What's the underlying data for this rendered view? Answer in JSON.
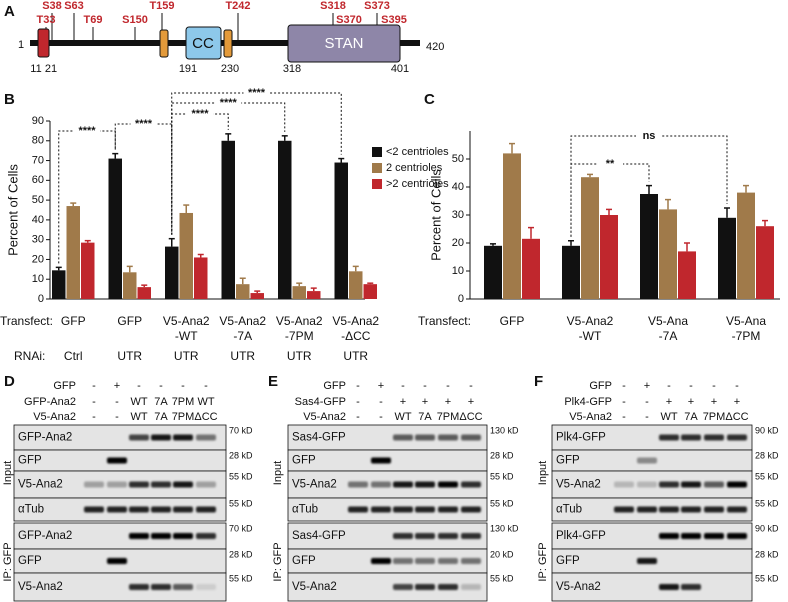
{
  "panel_a": {
    "letter": "A",
    "start": "1",
    "end": "420",
    "sites": [
      "S38",
      "T33",
      "S63",
      "T69",
      "S150",
      "T159",
      "T242",
      "S318",
      "S370",
      "S373",
      "S395"
    ],
    "domains": [
      "CC",
      "STAN"
    ],
    "boundaries": [
      "11",
      "21",
      "191",
      "230",
      "318",
      "401"
    ]
  },
  "chart_data": [
    {
      "type": "bar",
      "letter": "B",
      "ylabel": "Percent of Cells",
      "ylim": [
        0,
        90
      ],
      "yticks": [
        0,
        10,
        20,
        30,
        40,
        50,
        60,
        70,
        80,
        90
      ],
      "transfect_label": "Transfect:",
      "rnai_label": "RNAi:",
      "categories": [
        [
          "GFP"
        ],
        [
          "GFP"
        ],
        [
          "V5-Ana2",
          "-WT"
        ],
        [
          "V5-Ana2",
          "-7A"
        ],
        [
          "V5-Ana2",
          "-7PM"
        ],
        [
          "V5-Ana2",
          "-ΔCC"
        ]
      ],
      "rnai": [
        "Ctrl",
        "UTR",
        "UTR",
        "UTR",
        "UTR",
        "UTR"
      ],
      "series": [
        {
          "name": "<2 centrioles",
          "color": "#111111",
          "values": [
            14.5,
            71,
            26.5,
            80,
            80,
            69
          ],
          "errors": [
            1.5,
            2.5,
            4,
            3.5,
            2.5,
            2
          ]
        },
        {
          "name": "2 centrioles",
          "color": "#a07a4a",
          "values": [
            47,
            13.5,
            43.5,
            7.5,
            6.5,
            14
          ],
          "errors": [
            1.5,
            3,
            4,
            3,
            1.5,
            2.5
          ]
        },
        {
          "name": ">2 centrioles",
          "color": "#c0272d",
          "values": [
            28.5,
            6,
            21,
            3,
            4,
            7.5
          ],
          "errors": [
            1,
            1,
            1.5,
            1,
            1.5,
            0.5
          ]
        }
      ],
      "annotations": [
        "****",
        "****",
        "****",
        "****",
        "****"
      ]
    },
    {
      "type": "bar",
      "letter": "C",
      "ylabel": "Percent of Cells",
      "ylim": [
        0,
        60
      ],
      "yticks": [
        0,
        10,
        20,
        30,
        40,
        50
      ],
      "transfect_label": "Transfect:",
      "categories": [
        [
          "GFP"
        ],
        [
          "V5-Ana2",
          "-WT"
        ],
        [
          "V5-Ana",
          "-7A"
        ],
        [
          "V5-Ana",
          "-7PM"
        ]
      ],
      "series": [
        {
          "name": "<2 centrioles",
          "color": "#111111",
          "values": [
            19,
            19,
            37.5,
            29
          ],
          "errors": [
            0.7,
            1.8,
            3,
            3.5
          ]
        },
        {
          "name": "2 centrioles",
          "color": "#a07a4a",
          "values": [
            52,
            43.5,
            32,
            38
          ],
          "errors": [
            3.5,
            1,
            3.5,
            2.5
          ]
        },
        {
          "name": ">2 centrioles",
          "color": "#c0272d",
          "values": [
            21.5,
            30,
            17,
            26
          ],
          "errors": [
            4,
            2,
            3,
            2
          ]
        }
      ],
      "annotations": [
        "**",
        "ns"
      ]
    }
  ],
  "blots": [
    {
      "letter": "D",
      "conditions": [
        {
          "label": "GFP",
          "lanes": [
            "-",
            "+",
            "-",
            "-",
            "-",
            "-"
          ]
        },
        {
          "label": "GFP-Ana2",
          "lanes": [
            "-",
            "-",
            "WT",
            "7A",
            "7PM",
            "WT"
          ]
        },
        {
          "label": "V5-Ana2",
          "lanes": [
            "-",
            "-",
            "WT",
            "7A",
            "7PM",
            "ΔCC"
          ]
        }
      ],
      "groups": [
        {
          "label": "Input",
          "strips": [
            {
              "label": "GFP-Ana2",
              "marker": "70 kD"
            },
            {
              "label": "GFP",
              "marker": "28 kD"
            },
            {
              "label": "V5-Ana2",
              "marker": "55 kD"
            },
            {
              "label": "αTub",
              "marker": "55 kD"
            }
          ]
        },
        {
          "label": "IP: GFP",
          "strips": [
            {
              "label": "GFP-Ana2",
              "marker": "70 kD"
            },
            {
              "label": "GFP",
              "marker": "28 kD"
            },
            {
              "label": "V5-Ana2",
              "marker": "55 kD"
            }
          ]
        }
      ]
    },
    {
      "letter": "E",
      "conditions": [
        {
          "label": "GFP",
          "lanes": [
            "-",
            "+",
            "-",
            "-",
            "-",
            "-"
          ]
        },
        {
          "label": "Sas4-GFP",
          "lanes": [
            "-",
            "-",
            "+",
            "+",
            "+",
            "+"
          ]
        },
        {
          "label": "V5-Ana2",
          "lanes": [
            "-",
            "-",
            "WT",
            "7A",
            "7PM",
            "ΔCC"
          ]
        }
      ],
      "groups": [
        {
          "label": "Input",
          "strips": [
            {
              "label": "Sas4-GFP",
              "marker": "130 kD"
            },
            {
              "label": "GFP",
              "marker": "28 kD"
            },
            {
              "label": "V5-Ana2",
              "marker": "55 kD"
            },
            {
              "label": "αTub",
              "marker": "55 kD"
            }
          ]
        },
        {
          "label": "IP: GFP",
          "strips": [
            {
              "label": "Sas4-GFP",
              "marker": "130 kD"
            },
            {
              "label": "GFP",
              "marker": "20 kD"
            },
            {
              "label": "V5-Ana2",
              "marker": "55 kD"
            }
          ]
        }
      ]
    },
    {
      "letter": "F",
      "conditions": [
        {
          "label": "GFP",
          "lanes": [
            "-",
            "+",
            "-",
            "-",
            "-",
            "-"
          ]
        },
        {
          "label": "Plk4-GFP",
          "lanes": [
            "-",
            "-",
            "+",
            "+",
            "+",
            "+"
          ]
        },
        {
          "label": "V5-Ana2",
          "lanes": [
            "-",
            "-",
            "WT",
            "7A",
            "7PM",
            "ΔCC"
          ]
        }
      ],
      "groups": [
        {
          "label": "Input",
          "strips": [
            {
              "label": "Plk4-GFP",
              "marker": "90 kD"
            },
            {
              "label": "GFP",
              "marker": "28 kD"
            },
            {
              "label": "V5-Ana2",
              "marker": "55 kD"
            },
            {
              "label": "αTub",
              "marker": "55 kD"
            }
          ]
        },
        {
          "label": "IP: GFP",
          "strips": [
            {
              "label": "Plk4-GFP",
              "marker": "90 kD"
            },
            {
              "label": "GFP",
              "marker": "28 kD"
            },
            {
              "label": "V5-Ana2",
              "marker": "55 kD"
            }
          ]
        }
      ]
    }
  ]
}
